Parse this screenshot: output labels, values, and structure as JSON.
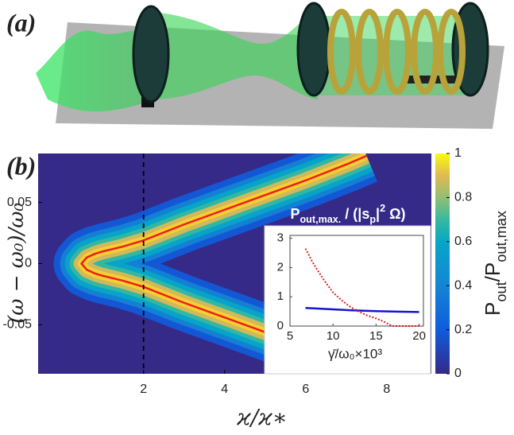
{
  "panels": {
    "a": "(a)",
    "b": "(b)"
  },
  "chart_data": [
    {
      "type": "heatmap",
      "xlabel": "ϰ/ϰ∗",
      "ylabel": "(ω − ω₀)/ω₀",
      "xlim": [
        -0.6,
        9.1
      ],
      "xticks": [
        2,
        4,
        6,
        8
      ],
      "ylim": [
        -0.09,
        0.09
      ],
      "yticks": [
        -0.05,
        0,
        0.05
      ],
      "colorbar_label": [
        {
          "text": "P"
        },
        {
          "text": "out",
          "shift": "sub"
        },
        {
          "text": "/P"
        },
        {
          "text": "out,max",
          "shift": "sub"
        }
      ],
      "colorbar_lim": [
        0,
        1
      ],
      "colorbar_ticks": [
        0,
        0.2,
        0.4,
        0.6,
        0.8,
        1
      ],
      "vline": 2,
      "series": [
        {
          "color": "#e8201f",
          "x": [
            7.5,
            7,
            6,
            5,
            4,
            3,
            2,
            1.5,
            1,
            0.8,
            0.6,
            0.47,
            0.6,
            0.8,
            1,
            1.5,
            2,
            3,
            4,
            5,
            6,
            7,
            7.5
          ],
          "values": [
            0.088,
            0.081,
            0.068,
            0.056,
            0.044,
            0.032,
            0.019,
            0.014,
            0.01,
            0.008,
            0.005,
            0,
            -0.005,
            -0.008,
            -0.01,
            -0.014,
            -0.019,
            -0.032,
            -0.044,
            -0.056,
            -0.068,
            -0.081,
            -0.088
          ]
        }
      ]
    },
    {
      "type": "line",
      "title": [
        {
          "text": "P"
        },
        {
          "text": "out,max.",
          "shift": "sub"
        },
        {
          "text": " / (|s"
        },
        {
          "text": "p",
          "shift": "sub"
        },
        {
          "text": "|"
        },
        {
          "text": "2",
          "shift": "super"
        },
        {
          "text": " Ω)"
        }
      ],
      "xlabel": "γ̄/ω₀×10³",
      "xlim": [
        5,
        20.5
      ],
      "xticks": [
        5,
        10,
        15,
        20
      ],
      "ylim": [
        0,
        3.1
      ],
      "yticks": [
        0,
        1,
        2,
        3
      ],
      "series": [
        {
          "color": "#1414d2",
          "dash": "solid",
          "x": [
            6.8,
            8,
            10,
            12,
            15,
            18,
            20
          ],
          "values": [
            0.62,
            0.6,
            0.57,
            0.54,
            0.51,
            0.49,
            0.48
          ]
        },
        {
          "color": "#e02020",
          "dash": "dotted",
          "x": [
            6.8,
            7.5,
            8,
            9,
            10,
            11,
            12,
            13,
            14,
            15,
            16,
            16.5,
            17,
            18,
            20
          ],
          "values": [
            2.65,
            2.25,
            2.0,
            1.55,
            1.15,
            0.88,
            0.66,
            0.49,
            0.36,
            0.26,
            0.14,
            0.05,
            0,
            0,
            0
          ]
        }
      ]
    }
  ]
}
